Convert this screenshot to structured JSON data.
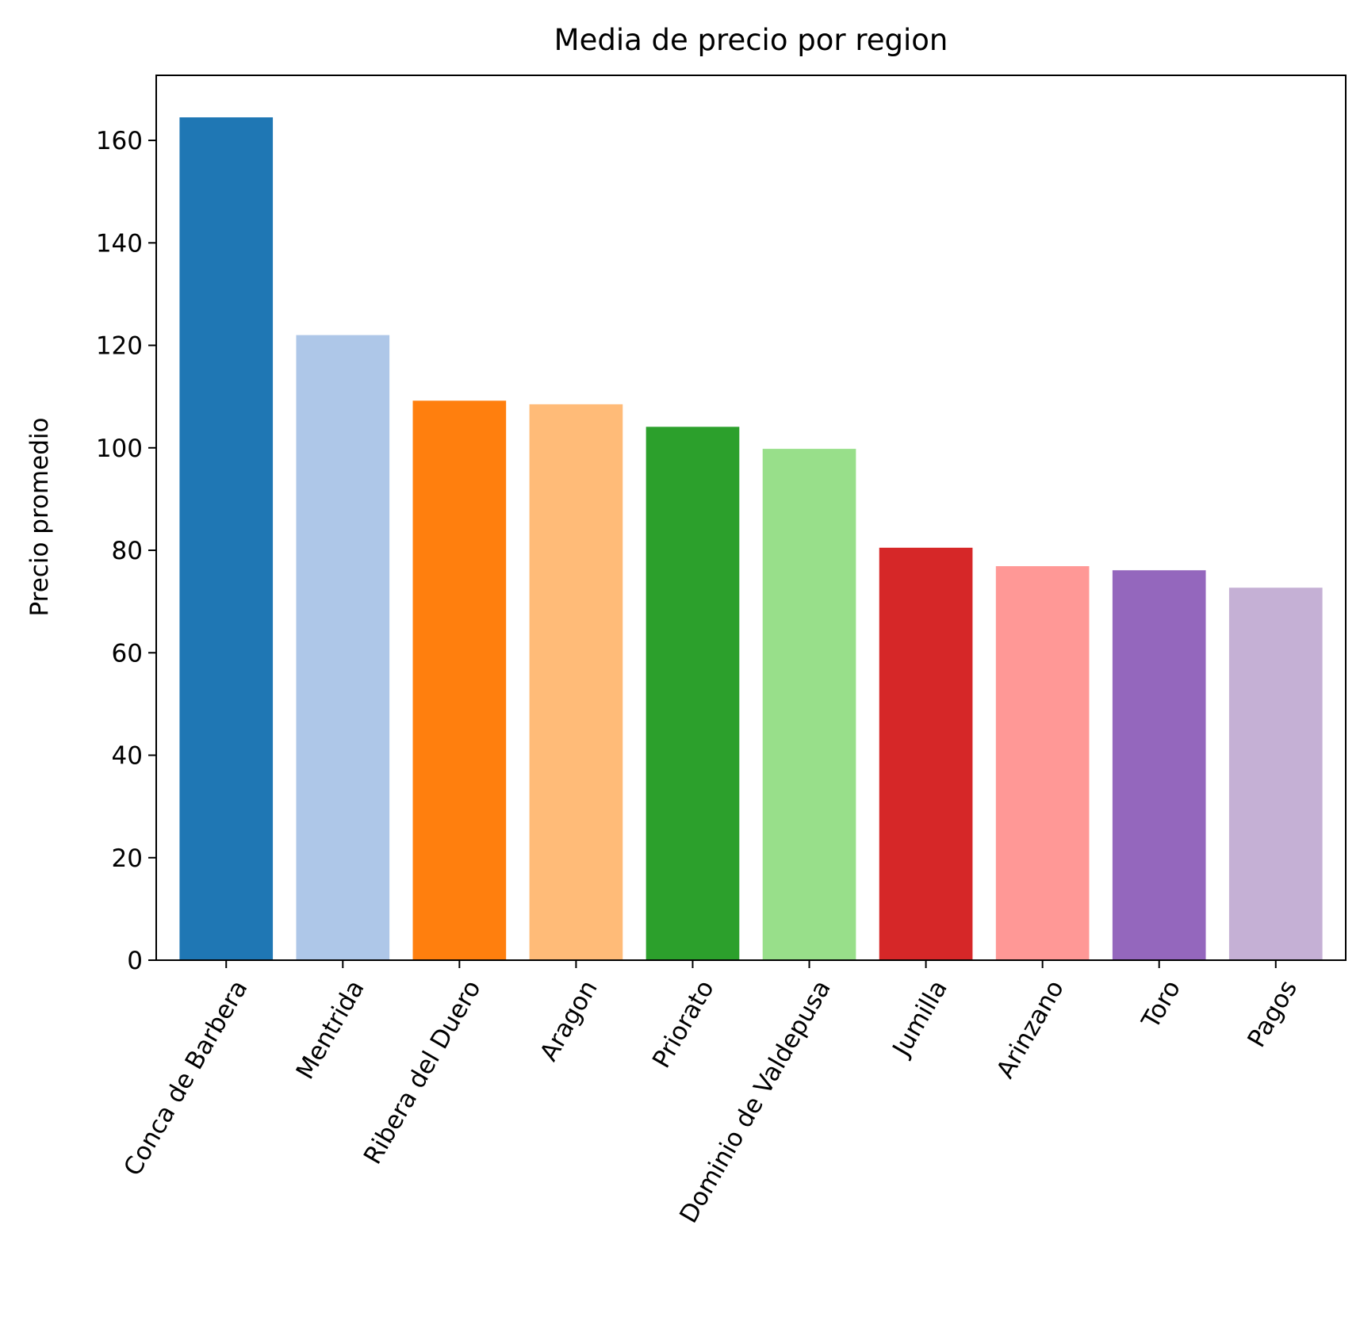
{
  "chart_data": {
    "type": "bar",
    "title": "Media de precio por region",
    "xlabel": "",
    "ylabel": "Precio promedio",
    "categories": [
      "Conca de Barbera",
      "Mentrida",
      "Ribera del Duero",
      "Aragon",
      "Priorato",
      "Dominio de Valdepusa",
      "Jumilla",
      "Arinzano",
      "Toro",
      "Pagos"
    ],
    "values": [
      164.5,
      122.0,
      109.2,
      108.5,
      104.1,
      99.8,
      80.5,
      76.9,
      76.1,
      72.7
    ],
    "colors": [
      "#1f77b4",
      "#aec7e8",
      "#ff7f0e",
      "#ffbb78",
      "#2ca02c",
      "#98df8a",
      "#d62728",
      "#ff9896",
      "#9467bd",
      "#c5b0d5"
    ],
    "ylim": [
      0,
      172.7
    ],
    "yticks": [
      0,
      20,
      40,
      60,
      80,
      100,
      120,
      140,
      160
    ],
    "xtick_rotation": 60,
    "grid": false,
    "legend": "none"
  }
}
